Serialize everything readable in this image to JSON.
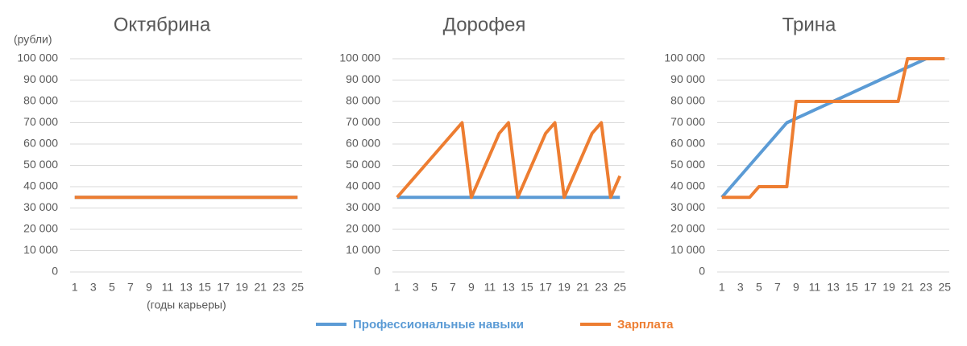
{
  "chart_data": [
    {
      "type": "line",
      "title": "Октябрина",
      "y_label": "(рубли)",
      "x_label": "(годы карьеры)",
      "x": [
        1,
        2,
        3,
        4,
        5,
        6,
        7,
        8,
        9,
        10,
        11,
        12,
        13,
        14,
        15,
        16,
        17,
        18,
        19,
        20,
        21,
        22,
        23,
        24,
        25
      ],
      "xlim": [
        0.5,
        25.5
      ],
      "xticks": [
        1,
        3,
        5,
        7,
        9,
        11,
        13,
        15,
        17,
        19,
        21,
        23,
        25
      ],
      "ylim": [
        0,
        100000
      ],
      "yticks": [
        0,
        {
          "value": 10000,
          "label": "10 000"
        },
        {
          "value": 20000,
          "label": "20 000"
        },
        {
          "value": 30000,
          "label": "30 000"
        },
        {
          "value": 40000,
          "label": "40 000"
        },
        {
          "value": 50000,
          "label": "50 000"
        },
        {
          "value": 60000,
          "label": "60 000"
        },
        {
          "value": 70000,
          "label": "70 000"
        },
        {
          "value": 80000,
          "label": "80 000"
        },
        {
          "value": 90000,
          "label": "90 000"
        },
        {
          "value": 100000,
          "label": "100 000"
        }
      ],
      "grid": true,
      "series": [
        {
          "name": "Профессиональные навыки",
          "color": "#5b9bd5",
          "values": [
            35000,
            35000,
            35000,
            35000,
            35000,
            35000,
            35000,
            35000,
            35000,
            35000,
            35000,
            35000,
            35000,
            35000,
            35000,
            35000,
            35000,
            35000,
            35000,
            35000,
            35000,
            35000,
            35000,
            35000,
            35000
          ]
        },
        {
          "name": "Зарплата",
          "color": "#ed7d31",
          "values": [
            35000,
            35000,
            35000,
            35000,
            35000,
            35000,
            35000,
            35000,
            35000,
            35000,
            35000,
            35000,
            35000,
            35000,
            35000,
            35000,
            35000,
            35000,
            35000,
            35000,
            35000,
            35000,
            35000,
            35000,
            35000
          ]
        }
      ]
    },
    {
      "type": "line",
      "title": "Дорофея",
      "x": [
        1,
        2,
        3,
        4,
        5,
        6,
        7,
        8,
        9,
        10,
        11,
        12,
        13,
        14,
        15,
        16,
        17,
        18,
        19,
        20,
        21,
        22,
        23,
        24,
        25
      ],
      "xlim": [
        0.5,
        25.5
      ],
      "xticks": [
        1,
        3,
        5,
        7,
        9,
        11,
        13,
        15,
        17,
        19,
        21,
        23,
        25
      ],
      "ylim": [
        0,
        100000
      ],
      "yticks": [
        0,
        {
          "value": 10000,
          "label": "10 000"
        },
        {
          "value": 20000,
          "label": "20 000"
        },
        {
          "value": 30000,
          "label": "30 000"
        },
        {
          "value": 40000,
          "label": "40 000"
        },
        {
          "value": 50000,
          "label": "50 000"
        },
        {
          "value": 60000,
          "label": "60 000"
        },
        {
          "value": 70000,
          "label": "70 000"
        },
        {
          "value": 80000,
          "label": "80 000"
        },
        {
          "value": 90000,
          "label": "90 000"
        },
        {
          "value": 100000,
          "label": "100 000"
        }
      ],
      "grid": true,
      "series": [
        {
          "name": "Профессиональные навыки",
          "color": "#5b9bd5",
          "values": [
            35000,
            35000,
            35000,
            35000,
            35000,
            35000,
            35000,
            35000,
            35000,
            35000,
            35000,
            35000,
            35000,
            35000,
            35000,
            35000,
            35000,
            35000,
            35000,
            35000,
            35000,
            35000,
            35000,
            35000,
            35000
          ]
        },
        {
          "name": "Зарплата",
          "color": "#ed7d31",
          "values": [
            35000,
            40000,
            45000,
            50000,
            55000,
            60000,
            65000,
            70000,
            35000,
            45000,
            55000,
            65000,
            70000,
            35000,
            45000,
            55000,
            65000,
            70000,
            35000,
            45000,
            55000,
            65000,
            70000,
            35000,
            45000
          ]
        }
      ]
    },
    {
      "type": "line",
      "title": "Трина",
      "x": [
        1,
        2,
        3,
        4,
        5,
        6,
        7,
        8,
        9,
        10,
        11,
        12,
        13,
        14,
        15,
        16,
        17,
        18,
        19,
        20,
        21,
        22,
        23,
        24,
        25
      ],
      "xlim": [
        0.5,
        25.5
      ],
      "xticks": [
        1,
        3,
        5,
        7,
        9,
        11,
        13,
        15,
        17,
        19,
        21,
        23,
        25
      ],
      "ylim": [
        0,
        100000
      ],
      "yticks": [
        0,
        {
          "value": 10000,
          "label": "10 000"
        },
        {
          "value": 20000,
          "label": "20 000"
        },
        {
          "value": 30000,
          "label": "30 000"
        },
        {
          "value": 40000,
          "label": "40 000"
        },
        {
          "value": 50000,
          "label": "50 000"
        },
        {
          "value": 60000,
          "label": "60 000"
        },
        {
          "value": 70000,
          "label": "70 000"
        },
        {
          "value": 80000,
          "label": "80 000"
        },
        {
          "value": 90000,
          "label": "90 000"
        },
        {
          "value": 100000,
          "label": "100 000"
        }
      ],
      "grid": true,
      "series": [
        {
          "name": "Профессиональные навыки",
          "color": "#5b9bd5",
          "values": [
            35000,
            40000,
            45000,
            50000,
            55000,
            60000,
            65000,
            70000,
            72000,
            74000,
            76000,
            78000,
            80000,
            82000,
            84000,
            86000,
            88000,
            90000,
            92000,
            94000,
            96000,
            98000,
            100000,
            100000,
            100000
          ]
        },
        {
          "name": "Зарплата",
          "color": "#ed7d31",
          "values": [
            35000,
            35000,
            35000,
            35000,
            40000,
            40000,
            40000,
            40000,
            80000,
            80000,
            80000,
            80000,
            80000,
            80000,
            80000,
            80000,
            80000,
            80000,
            80000,
            80000,
            100000,
            100000,
            100000,
            100000,
            100000
          ]
        }
      ]
    }
  ]
}
